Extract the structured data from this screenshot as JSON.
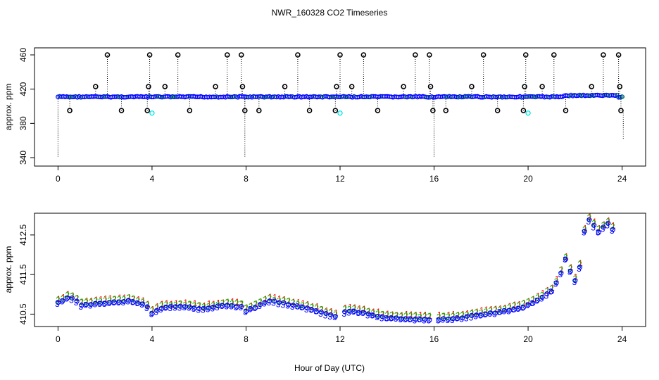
{
  "title": "NWR_160328  CO2 Timeseries",
  "xlabel": "Hour of Day (UTC)",
  "colors": {
    "black": "#000000",
    "blue": "#0000ff",
    "cyan": "#00e5e5",
    "green": "#00c000",
    "red": "#ff0000",
    "orange": "#ff9900"
  },
  "chart_data": [
    {
      "type": "scatter",
      "name": "top-panel",
      "ylabel": "approx. ppm",
      "xlim": [
        -1,
        25
      ],
      "ylim": [
        340,
        460
      ],
      "x_ticks": [
        0,
        4,
        8,
        12,
        16,
        20,
        24
      ],
      "y_ticks": [
        340,
        380,
        420,
        460
      ],
      "baseline_ppm": 411,
      "spikes_high_460": [
        2.1,
        3.9,
        5.1,
        7.2,
        7.8,
        10.2,
        12.0,
        13.0,
        15.2,
        15.8,
        18.1,
        19.9,
        21.1,
        23.2,
        23.85
      ],
      "spikes_mid_423": [
        1.6,
        3.85,
        4.55,
        6.7,
        7.85,
        9.65,
        11.85,
        12.5,
        14.7,
        15.85,
        17.6,
        19.85,
        20.6,
        22.7,
        23.9
      ],
      "spikes_low_395": [
        0.5,
        2.7,
        3.8,
        5.6,
        7.95,
        8.55,
        10.7,
        11.8,
        13.6,
        15.95,
        16.5,
        18.7,
        19.8,
        21.6,
        23.95
      ],
      "cyan_points": [
        {
          "x": 4.0,
          "y": 392
        },
        {
          "x": 12.0,
          "y": 392
        },
        {
          "x": 20.0,
          "y": 392
        }
      ],
      "drop_lines_to_340": [
        0.0,
        7.95,
        16.0
      ],
      "series": [
        {
          "name": "co2",
          "marker": "o"
        }
      ]
    },
    {
      "type": "scatter",
      "name": "bottom-panel",
      "ylabel": "approx. ppm",
      "xlim": [
        -1,
        25
      ],
      "ylim": [
        410.2,
        413.0
      ],
      "x_ticks": [
        0,
        4,
        8,
        12,
        16,
        20,
        24
      ],
      "y_ticks": [
        410.5,
        411.5,
        412.5
      ],
      "tick_labels": [
        "410.5",
        "411.5",
        "412.5"
      ],
      "series": [
        {
          "name": "series-1",
          "marker": "1",
          "color": "red"
        },
        {
          "name": "series-2",
          "marker": "2",
          "color": "green"
        },
        {
          "name": "series-3",
          "marker": "3",
          "color": "blue"
        },
        {
          "name": "circles",
          "marker": "o",
          "color": "blue"
        }
      ],
      "trend_knots": [
        [
          0,
          410.8
        ],
        [
          0.5,
          410.95
        ],
        [
          1.0,
          410.75
        ],
        [
          2.0,
          410.8
        ],
        [
          3.0,
          410.85
        ],
        [
          3.5,
          410.8
        ],
        [
          3.8,
          410.7
        ],
        [
          4.0,
          410.55
        ],
        [
          4.5,
          410.7
        ],
        [
          5.5,
          410.7
        ],
        [
          6.2,
          410.65
        ],
        [
          7.2,
          410.75
        ],
        [
          7.8,
          410.7
        ],
        [
          8.0,
          410.6
        ],
        [
          9.0,
          410.85
        ],
        [
          10.0,
          410.75
        ],
        [
          11.0,
          410.6
        ],
        [
          11.8,
          410.45
        ],
        [
          12.0,
          410.55
        ],
        [
          12.5,
          410.6
        ],
        [
          13.0,
          410.55
        ],
        [
          14.0,
          410.42
        ],
        [
          15.0,
          410.4
        ],
        [
          16.0,
          410.38
        ],
        [
          17.0,
          410.42
        ],
        [
          18.0,
          410.5
        ],
        [
          19.0,
          410.6
        ],
        [
          19.8,
          410.7
        ],
        [
          20.0,
          410.75
        ],
        [
          20.5,
          410.9
        ],
        [
          21.0,
          411.1
        ],
        [
          21.3,
          411.4
        ],
        [
          21.6,
          411.9
        ],
        [
          21.8,
          411.6
        ],
        [
          22.0,
          411.35
        ],
        [
          22.2,
          411.7
        ],
        [
          22.4,
          412.6
        ],
        [
          22.6,
          412.9
        ],
        [
          23.0,
          412.6
        ],
        [
          23.4,
          412.8
        ],
        [
          23.7,
          412.6
        ]
      ]
    }
  ]
}
